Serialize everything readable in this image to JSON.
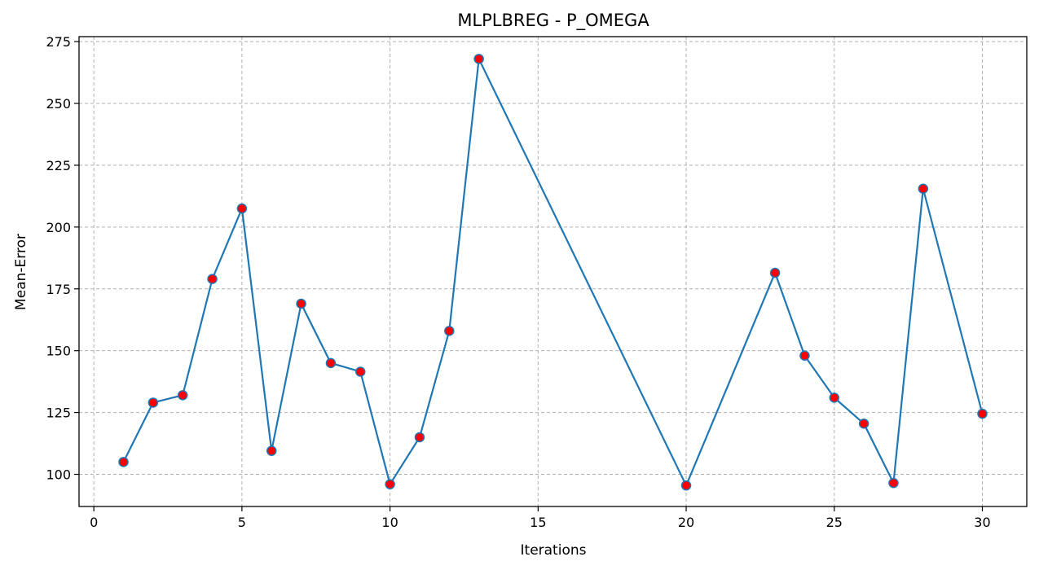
{
  "chart_data": {
    "type": "line",
    "title": "MLPLBREG - P_OMEGA",
    "xlabel": "Iterations",
    "ylabel": "Mean-Error",
    "xlim": [
      -0.5,
      31.5
    ],
    "ylim": [
      87,
      277
    ],
    "xticks": [
      0,
      5,
      10,
      15,
      20,
      25,
      30
    ],
    "yticks": [
      100,
      125,
      150,
      175,
      200,
      225,
      250,
      275
    ],
    "grid": true,
    "line_color": "#1f77b4",
    "marker_face_color": "#ff0000",
    "marker_edge_color": "#1f77b4",
    "series": [
      {
        "x": [
          1,
          2,
          3,
          4,
          5,
          6,
          7,
          8,
          9,
          10,
          11,
          12,
          13,
          20,
          23,
          24,
          25,
          26,
          27,
          28,
          30
        ],
        "values": [
          105,
          129,
          132,
          179,
          207.5,
          109.5,
          169,
          145,
          141.5,
          96,
          115,
          158,
          268,
          95.5,
          181.5,
          148,
          131,
          120.5,
          96.5,
          215.5,
          124.5
        ]
      }
    ]
  }
}
